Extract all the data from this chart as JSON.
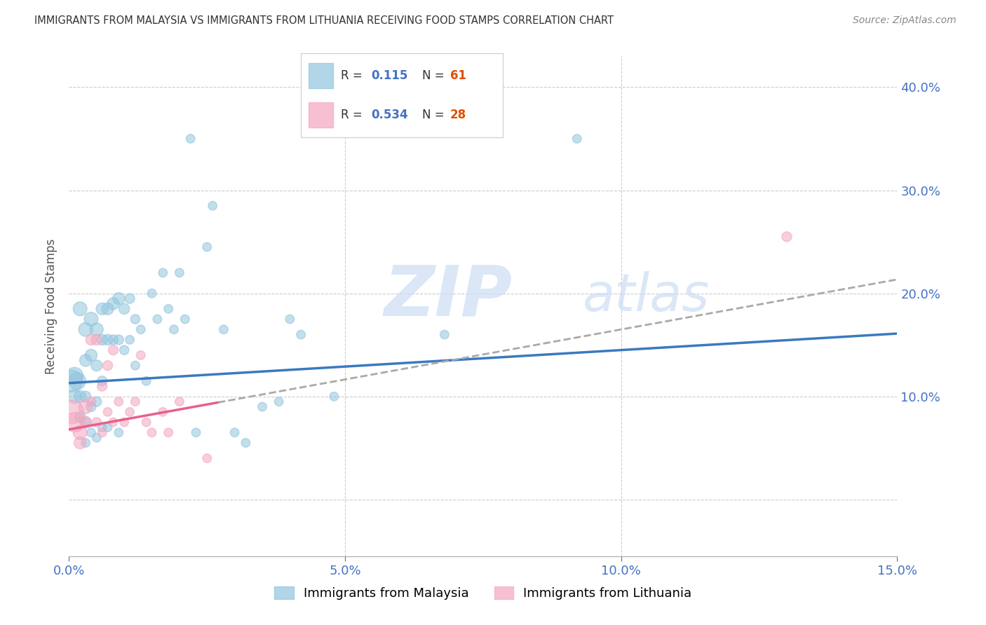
{
  "title": "IMMIGRANTS FROM MALAYSIA VS IMMIGRANTS FROM LITHUANIA RECEIVING FOOD STAMPS CORRELATION CHART",
  "source": "Source: ZipAtlas.com",
  "ylabel": "Receiving Food Stamps",
  "xlim": [
    0.0,
    0.15
  ],
  "ylim": [
    -0.055,
    0.43
  ],
  "yticks": [
    0.0,
    0.1,
    0.2,
    0.3,
    0.4
  ],
  "xticks": [
    0.0,
    0.05,
    0.1,
    0.15
  ],
  "xtick_labels": [
    "0.0%",
    "5.0%",
    "10.0%",
    "15.0%"
  ],
  "right_ytick_labels": [
    "10.0%",
    "20.0%",
    "30.0%",
    "40.0%"
  ],
  "malaysia_color": "#92c5de",
  "lithuania_color": "#f4a6c0",
  "malaysia_line_color": "#3a7abf",
  "lithuania_line_color": "#e8608a",
  "R_malaysia": 0.115,
  "N_malaysia": 61,
  "R_lithuania": 0.534,
  "N_lithuania": 28,
  "watermark": "ZIPatlas",
  "legend_malaysia": "Immigrants from Malaysia",
  "legend_lithuania": "Immigrants from Lithuania",
  "malaysia_x": [
    0.0005,
    0.001,
    0.001,
    0.0015,
    0.002,
    0.002,
    0.002,
    0.003,
    0.003,
    0.003,
    0.003,
    0.003,
    0.004,
    0.004,
    0.004,
    0.004,
    0.005,
    0.005,
    0.005,
    0.005,
    0.006,
    0.006,
    0.006,
    0.006,
    0.007,
    0.007,
    0.007,
    0.008,
    0.008,
    0.009,
    0.009,
    0.009,
    0.01,
    0.01,
    0.011,
    0.011,
    0.012,
    0.012,
    0.013,
    0.014,
    0.015,
    0.016,
    0.017,
    0.018,
    0.019,
    0.02,
    0.021,
    0.022,
    0.023,
    0.025,
    0.026,
    0.028,
    0.03,
    0.032,
    0.035,
    0.038,
    0.04,
    0.042,
    0.048,
    0.068,
    0.092
  ],
  "malaysia_y": [
    0.115,
    0.12,
    0.1,
    0.115,
    0.185,
    0.1,
    0.08,
    0.165,
    0.135,
    0.1,
    0.075,
    0.055,
    0.175,
    0.14,
    0.09,
    0.065,
    0.165,
    0.13,
    0.095,
    0.06,
    0.185,
    0.155,
    0.115,
    0.07,
    0.185,
    0.155,
    0.07,
    0.19,
    0.155,
    0.195,
    0.155,
    0.065,
    0.185,
    0.145,
    0.195,
    0.155,
    0.175,
    0.13,
    0.165,
    0.115,
    0.2,
    0.175,
    0.22,
    0.185,
    0.165,
    0.22,
    0.175,
    0.35,
    0.065,
    0.245,
    0.285,
    0.165,
    0.065,
    0.055,
    0.09,
    0.095,
    0.175,
    0.16,
    0.1,
    0.16,
    0.35
  ],
  "lithuania_x": [
    0.0005,
    0.001,
    0.002,
    0.002,
    0.003,
    0.003,
    0.004,
    0.004,
    0.005,
    0.005,
    0.006,
    0.006,
    0.007,
    0.007,
    0.008,
    0.008,
    0.009,
    0.01,
    0.011,
    0.012,
    0.013,
    0.014,
    0.015,
    0.017,
    0.018,
    0.02,
    0.025,
    0.13
  ],
  "lithuania_y": [
    0.085,
    0.075,
    0.065,
    0.055,
    0.09,
    0.075,
    0.155,
    0.095,
    0.155,
    0.075,
    0.11,
    0.065,
    0.13,
    0.085,
    0.145,
    0.075,
    0.095,
    0.075,
    0.085,
    0.095,
    0.14,
    0.075,
    0.065,
    0.085,
    0.065,
    0.095,
    0.04,
    0.255
  ],
  "malaysia_sizes": [
    500,
    300,
    200,
    300,
    200,
    150,
    120,
    200,
    150,
    120,
    100,
    80,
    200,
    150,
    100,
    80,
    180,
    130,
    100,
    80,
    150,
    120,
    100,
    80,
    150,
    120,
    80,
    150,
    100,
    150,
    100,
    80,
    120,
    90,
    100,
    80,
    90,
    80,
    80,
    80,
    80,
    80,
    80,
    80,
    80,
    80,
    80,
    80,
    80,
    80,
    80,
    80,
    80,
    80,
    80,
    80,
    80,
    80,
    80,
    80,
    80
  ],
  "lithuania_sizes": [
    600,
    400,
    200,
    150,
    200,
    150,
    120,
    90,
    120,
    90,
    100,
    80,
    100,
    80,
    100,
    80,
    80,
    80,
    80,
    80,
    80,
    80,
    80,
    80,
    80,
    80,
    80,
    100
  ]
}
